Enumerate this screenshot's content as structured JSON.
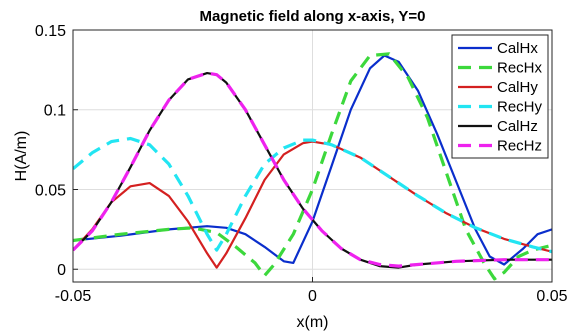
{
  "chart_data": {
    "type": "line",
    "title": "Magnetic field along x-axis, Y=0",
    "xlabel": "x(m)",
    "ylabel": "H(A/m)",
    "xlim": [
      -0.05,
      0.05
    ],
    "ylim": [
      -0.008,
      0.15
    ],
    "xticks": [
      -0.05,
      0,
      0.05
    ],
    "xtick_labels": [
      "-0.05",
      "0",
      "0.05"
    ],
    "yticks": [
      0,
      0.05,
      0.1,
      0.15
    ],
    "ytick_labels": [
      "0",
      "0.05",
      "0.1",
      "0.15"
    ],
    "grid": true,
    "legend_position": "top-right",
    "series": [
      {
        "name": "CalHx",
        "color": "#0a2ecc",
        "style": "solid",
        "x": [
          -0.05,
          -0.04,
          -0.03,
          -0.022,
          -0.018,
          -0.014,
          -0.01,
          -0.006,
          -0.004,
          0,
          0.004,
          0.008,
          0.012,
          0.015,
          0.018,
          0.022,
          0.026,
          0.03,
          0.034,
          0.037,
          0.04,
          0.044,
          0.047,
          0.05
        ],
        "y": [
          0.018,
          0.021,
          0.025,
          0.027,
          0.026,
          0.022,
          0.014,
          0.005,
          0.004,
          0.03,
          0.065,
          0.1,
          0.126,
          0.134,
          0.13,
          0.112,
          0.085,
          0.055,
          0.025,
          0.008,
          0.003,
          0.013,
          0.022,
          0.025
        ]
      },
      {
        "name": "RecHx",
        "color": "#3cd83c",
        "style": "dashed",
        "x": [
          -0.05,
          -0.04,
          -0.03,
          -0.025,
          -0.02,
          -0.016,
          -0.012,
          -0.01,
          -0.008,
          -0.004,
          0,
          0.004,
          0.008,
          0.012,
          0.016,
          0.02,
          0.024,
          0.028,
          0.032,
          0.036,
          0.038,
          0.04,
          0.043,
          0.046,
          0.05
        ],
        "y": [
          0.018,
          0.022,
          0.025,
          0.026,
          0.023,
          0.014,
          0.004,
          -0.004,
          0.003,
          0.022,
          0.05,
          0.085,
          0.118,
          0.134,
          0.135,
          0.12,
          0.095,
          0.06,
          0.025,
          0.003,
          -0.006,
          -0.002,
          0.008,
          0.012,
          0.015
        ]
      },
      {
        "name": "CalHy",
        "color": "#d42020",
        "style": "solid",
        "x": [
          -0.05,
          -0.046,
          -0.042,
          -0.038,
          -0.034,
          -0.03,
          -0.026,
          -0.022,
          -0.02,
          -0.018,
          -0.014,
          -0.01,
          -0.006,
          -0.002,
          0,
          0.004,
          0.01,
          0.016,
          0.022,
          0.028,
          0.034,
          0.04,
          0.046,
          0.05
        ],
        "y": [
          0.012,
          0.025,
          0.042,
          0.052,
          0.054,
          0.046,
          0.03,
          0.01,
          0.001,
          0.01,
          0.032,
          0.056,
          0.072,
          0.079,
          0.08,
          0.078,
          0.07,
          0.058,
          0.046,
          0.035,
          0.026,
          0.019,
          0.014,
          0.011
        ]
      },
      {
        "name": "RecHy",
        "color": "#22e5f2",
        "style": "dashed",
        "x": [
          -0.05,
          -0.046,
          -0.042,
          -0.038,
          -0.034,
          -0.03,
          -0.026,
          -0.022,
          -0.02,
          -0.018,
          -0.014,
          -0.01,
          -0.006,
          -0.002,
          0,
          0.004,
          0.01,
          0.016,
          0.022,
          0.028,
          0.034,
          0.04,
          0.046,
          0.05
        ],
        "y": [
          0.063,
          0.073,
          0.08,
          0.082,
          0.078,
          0.066,
          0.046,
          0.022,
          0.012,
          0.022,
          0.046,
          0.066,
          0.076,
          0.081,
          0.081,
          0.078,
          0.07,
          0.058,
          0.046,
          0.035,
          0.026,
          0.019,
          0.014,
          0.011
        ]
      },
      {
        "name": "CalHz",
        "color": "#111111",
        "style": "solid",
        "x": [
          -0.05,
          -0.046,
          -0.042,
          -0.038,
          -0.034,
          -0.03,
          -0.026,
          -0.022,
          -0.02,
          -0.018,
          -0.014,
          -0.01,
          -0.006,
          -0.002,
          0.002,
          0.006,
          0.01,
          0.014,
          0.018,
          0.022,
          0.03,
          0.04,
          0.05
        ],
        "y": [
          0.012,
          0.024,
          0.042,
          0.064,
          0.087,
          0.106,
          0.119,
          0.123,
          0.122,
          0.117,
          0.1,
          0.078,
          0.056,
          0.038,
          0.024,
          0.013,
          0.006,
          0.002,
          0.001,
          0.003,
          0.005,
          0.006,
          0.006
        ]
      },
      {
        "name": "RecHz",
        "color": "#ee22ee",
        "style": "dashed",
        "x": [
          -0.05,
          -0.046,
          -0.042,
          -0.038,
          -0.034,
          -0.03,
          -0.026,
          -0.022,
          -0.02,
          -0.018,
          -0.014,
          -0.01,
          -0.006,
          -0.002,
          0.002,
          0.006,
          0.01,
          0.014,
          0.018,
          0.022,
          0.03,
          0.04,
          0.05
        ],
        "y": [
          0.012,
          0.024,
          0.042,
          0.064,
          0.087,
          0.106,
          0.119,
          0.123,
          0.122,
          0.117,
          0.1,
          0.078,
          0.056,
          0.038,
          0.024,
          0.013,
          0.006,
          0.003,
          0.002,
          0.003,
          0.005,
          0.006,
          0.006
        ]
      }
    ]
  }
}
